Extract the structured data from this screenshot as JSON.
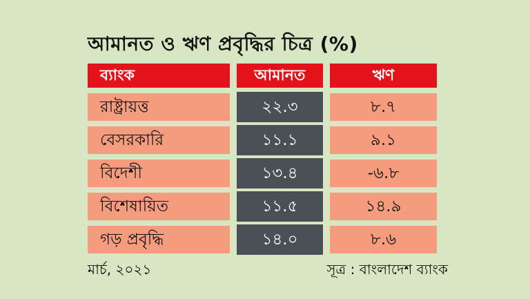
{
  "title": "আমানত ও ঋণ প্রবৃদ্ধির চিত্র (%)",
  "table": {
    "headers": [
      "ব্যাংক",
      "আমানত",
      "ঋণ"
    ],
    "rows": [
      {
        "bank": "রাষ্ট্রায়ত্ত",
        "deposit": "২২.৩",
        "loan": "৮.৭"
      },
      {
        "bank": "বেসরকারি",
        "deposit": "১১.১",
        "loan": "৯.১"
      },
      {
        "bank": "বিদেশী",
        "deposit": "১৩.৪",
        "loan": "-৬.৮"
      },
      {
        "bank": "বিশেষায়িত",
        "deposit": "১১.৫",
        "loan": "১৪.৯"
      },
      {
        "bank": "গড় প্রবৃদ্ধি",
        "deposit": "১৪.০",
        "loan": "৮.৬"
      }
    ]
  },
  "footer": {
    "date": "মার্চ, ২০২১",
    "source": "সূত্র : বাংলাদেশ ব্যাংক"
  },
  "colors": {
    "background": "#d9e6c3",
    "header_red": "#e4131b",
    "cell_salmon": "#f49c7d",
    "cell_dark": "#4b4f56",
    "text_dark": "#101010",
    "text_light": "#ffffff"
  },
  "chart_data": {
    "type": "table",
    "title": "আমানত ও ঋণ প্রবৃদ্ধির চিত্র (%)",
    "columns": [
      "ব্যাংক",
      "আমানত",
      "ঋণ"
    ],
    "categories": [
      "রাষ্ট্রায়ত্ত",
      "বেসরকারি",
      "বিদেশী",
      "বিশেষায়িত",
      "গড় প্রবৃদ্ধি"
    ],
    "series": [
      {
        "name": "আমানত",
        "values": [
          22.3,
          11.1,
          13.4,
          11.5,
          14.0
        ],
        "display": [
          "২২.৩",
          "১১.১",
          "১৩.৪",
          "১১.৫",
          "১৪.০"
        ]
      },
      {
        "name": "ঋণ",
        "values": [
          8.7,
          9.1,
          -6.8,
          14.9,
          8.6
        ],
        "display": [
          "৮.৭",
          "৯.১",
          "-৬.৮",
          "১৪.৯",
          "৮.৬"
        ]
      }
    ],
    "unit": "%",
    "period": "মার্চ, ২০২১",
    "source": "সূত্র : বাংলাদেশ ব্যাংক"
  }
}
